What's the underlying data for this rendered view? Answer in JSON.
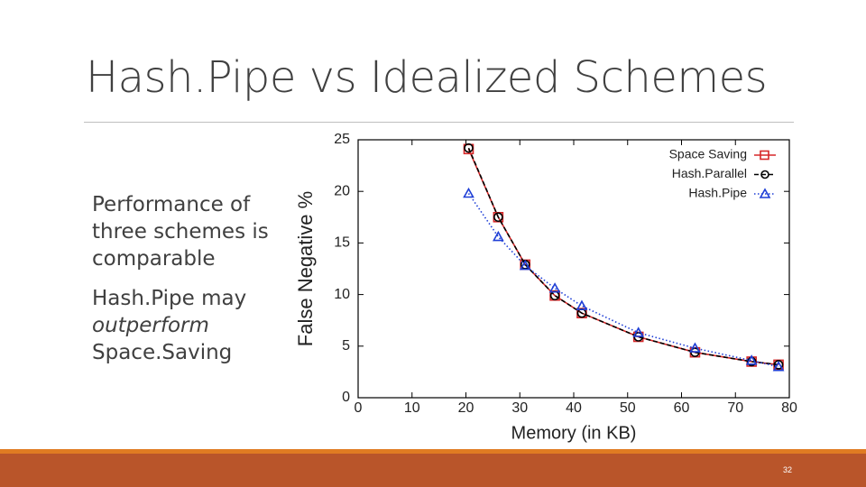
{
  "slide": {
    "title": "Hash.Pipe vs Idealized Schemes",
    "bullets": [
      [
        "Performance of three schemes is comparable"
      ],
      [
        "Hash.Pipe may ",
        "outperform",
        " Space.Saving"
      ]
    ],
    "page_number": "32"
  },
  "chart_data": {
    "type": "line",
    "x_label": "Memory (in KB)",
    "y_label": "False Negative %",
    "x": [
      20.5,
      26,
      31,
      36.5,
      41.5,
      52,
      62.5,
      73,
      78
    ],
    "series": [
      {
        "name": "Space Saving",
        "color": "#d62728",
        "line_style": "solid",
        "marker": "square",
        "values": [
          24.1,
          17.5,
          12.9,
          9.9,
          8.2,
          5.9,
          4.4,
          3.5,
          3.2
        ]
      },
      {
        "name": "Hash.Parallel",
        "color": "#000000",
        "line_style": "dashed",
        "marker": "circle",
        "values": [
          24.2,
          17.5,
          12.9,
          9.9,
          8.2,
          5.9,
          4.4,
          3.5,
          3.2
        ]
      },
      {
        "name": "Hash.Pipe",
        "color": "#1f3fd6",
        "line_style": "dotted",
        "marker": "triangle",
        "values": [
          19.8,
          15.6,
          12.8,
          10.6,
          8.9,
          6.3,
          4.8,
          3.6,
          3.0
        ]
      }
    ],
    "xlim": [
      0,
      80
    ],
    "xticks": [
      0,
      10,
      20,
      30,
      40,
      50,
      60,
      70,
      80
    ],
    "ylim": [
      0,
      25
    ],
    "yticks": [
      0,
      5,
      10,
      15,
      20,
      25
    ],
    "legend": "upper right"
  }
}
